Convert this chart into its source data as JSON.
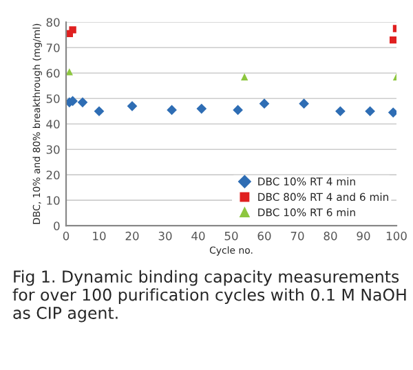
{
  "chart_data": {
    "type": "scatter",
    "xlabel": "Cycle no.",
    "ylabel": "DBC, 10% and 80% breakthrough (mg/ml)",
    "series": [
      {
        "name": "DBC 10% RT 4 min",
        "color": "#2e6db4",
        "marker": "diamond",
        "x": [
          1,
          2,
          5,
          10,
          20,
          32,
          41,
          52,
          60,
          72,
          83,
          92,
          99
        ],
        "values": [
          48.5,
          49,
          48.5,
          45,
          47,
          45.5,
          46,
          45.5,
          48,
          48,
          45,
          45,
          44.5
        ]
      },
      {
        "name": "DBC 80% RT 4 and 6 min",
        "color": "#e02020",
        "marker": "square",
        "x": [
          1,
          2,
          99,
          100
        ],
        "values": [
          75.5,
          77,
          73,
          77.5
        ]
      },
      {
        "name": "DBC 10% RT 6 min",
        "color": "#8dc63f",
        "marker": "triangle",
        "x": [
          1,
          54,
          100
        ],
        "values": [
          60.5,
          58.5,
          58.5
        ]
      }
    ],
    "xlim": [
      0,
      100
    ],
    "xticks": [
      0,
      10,
      20,
      30,
      40,
      50,
      60,
      70,
      80,
      90,
      100
    ],
    "ylim": [
      0,
      80
    ],
    "yticks": [
      0,
      10,
      20,
      30,
      40,
      50,
      60,
      70,
      80
    ],
    "grid": "y",
    "legend": "bottom right",
    "annotations": [
      "Fig 1. Dynamic binding capacity measurements for over 100 purification cycles with 0.1 M NaOH as CIP agent."
    ]
  }
}
